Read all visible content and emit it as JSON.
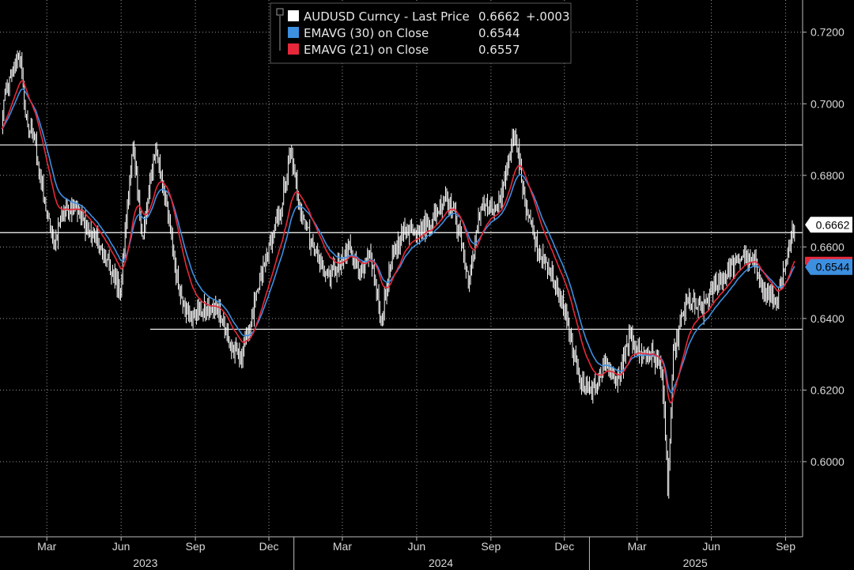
{
  "colors": {
    "background": "#000000",
    "grid": "#9a9a9a",
    "price": "#ffffff",
    "ema30": "#3d8fe0",
    "ema21": "#e8283a",
    "levels": "#ffffff",
    "tag_price_bg": "#ffffff",
    "tag_ema30_bg": "#3d8fe0",
    "tag_ema21_bg": "#e8283a"
  },
  "legend": {
    "price": {
      "name": "AUDUSD Curncy - Last Price",
      "value": "0.6662",
      "change": "+.0003"
    },
    "ema30": {
      "name": "EMAVG (30)  on Close",
      "value": "0.6544"
    },
    "ema21": {
      "name": "EMAVG (21)  on Close",
      "value": "0.6557"
    }
  },
  "chart_data": {
    "type": "line",
    "ylim": [
      0.579,
      0.729
    ],
    "y_ticks": [
      "0.6000",
      "0.6200",
      "0.6400",
      "0.6600",
      "0.6800",
      "0.7000",
      "0.7200"
    ],
    "x_months": [
      "Mar",
      "Jun",
      "Sep",
      "Dec",
      "Mar",
      "Jun",
      "Sep",
      "Dec",
      "Mar",
      "Jun",
      "Sep"
    ],
    "x_years": [
      "2023",
      "2024",
      "2025"
    ],
    "last_value_tags": [
      {
        "series": "price",
        "value": "0.6662"
      },
      {
        "series": "ema30",
        "value": "0.6544"
      }
    ],
    "horizontal_levels": [
      0.6885,
      0.664,
      0.637
    ],
    "price_anchors": [
      [
        "2023-01-02",
        0.685
      ],
      [
        "2023-01-06",
        0.7
      ],
      [
        "2023-01-17",
        0.708
      ],
      [
        "2023-01-26",
        0.715
      ],
      [
        "2023-02-03",
        0.695
      ],
      [
        "2023-02-14",
        0.69
      ],
      [
        "2023-02-24",
        0.675
      ],
      [
        "2023-03-10",
        0.66
      ],
      [
        "2023-03-20",
        0.67
      ],
      [
        "2023-04-05",
        0.672
      ],
      [
        "2023-04-20",
        0.665
      ],
      [
        "2023-05-01",
        0.662
      ],
      [
        "2023-05-15",
        0.655
      ],
      [
        "2023-05-31",
        0.648
      ],
      [
        "2023-06-15",
        0.688
      ],
      [
        "2023-06-28",
        0.662
      ],
      [
        "2023-07-13",
        0.688
      ],
      [
        "2023-07-25",
        0.675
      ],
      [
        "2023-08-10",
        0.65
      ],
      [
        "2023-08-25",
        0.64
      ],
      [
        "2023-09-10",
        0.642
      ],
      [
        "2023-09-30",
        0.643
      ],
      [
        "2023-10-15",
        0.632
      ],
      [
        "2023-10-26",
        0.629
      ],
      [
        "2023-11-10",
        0.64
      ],
      [
        "2023-11-25",
        0.655
      ],
      [
        "2023-12-15",
        0.67
      ],
      [
        "2023-12-28",
        0.686
      ],
      [
        "2024-01-10",
        0.67
      ],
      [
        "2024-01-25",
        0.66
      ],
      [
        "2024-02-10",
        0.652
      ],
      [
        "2024-02-25",
        0.654
      ],
      [
        "2024-03-10",
        0.66
      ],
      [
        "2024-03-25",
        0.652
      ],
      [
        "2024-04-05",
        0.658
      ],
      [
        "2024-04-18",
        0.64
      ],
      [
        "2024-05-01",
        0.656
      ],
      [
        "2024-05-15",
        0.665
      ],
      [
        "2024-06-01",
        0.665
      ],
      [
        "2024-06-20",
        0.667
      ],
      [
        "2024-07-08",
        0.675
      ],
      [
        "2024-07-20",
        0.668
      ],
      [
        "2024-08-05",
        0.65
      ],
      [
        "2024-08-20",
        0.672
      ],
      [
        "2024-09-10",
        0.67
      ],
      [
        "2024-09-30",
        0.693
      ],
      [
        "2024-10-15",
        0.67
      ],
      [
        "2024-10-31",
        0.658
      ],
      [
        "2024-11-20",
        0.65
      ],
      [
        "2024-12-05",
        0.64
      ],
      [
        "2024-12-20",
        0.622
      ],
      [
        "2025-01-05",
        0.62
      ],
      [
        "2025-01-20",
        0.627
      ],
      [
        "2025-02-05",
        0.622
      ],
      [
        "2025-02-20",
        0.635
      ],
      [
        "2025-03-05",
        0.63
      ],
      [
        "2025-03-20",
        0.63
      ],
      [
        "2025-04-01",
        0.625
      ],
      [
        "2025-04-08",
        0.592
      ],
      [
        "2025-04-15",
        0.63
      ],
      [
        "2025-05-01",
        0.645
      ],
      [
        "2025-05-20",
        0.642
      ],
      [
        "2025-06-05",
        0.649
      ],
      [
        "2025-06-25",
        0.654
      ],
      [
        "2025-07-10",
        0.658
      ],
      [
        "2025-07-25",
        0.655
      ],
      [
        "2025-08-05",
        0.648
      ],
      [
        "2025-08-20",
        0.644
      ],
      [
        "2025-09-01",
        0.654
      ],
      [
        "2025-09-12",
        0.6662
      ]
    ]
  }
}
